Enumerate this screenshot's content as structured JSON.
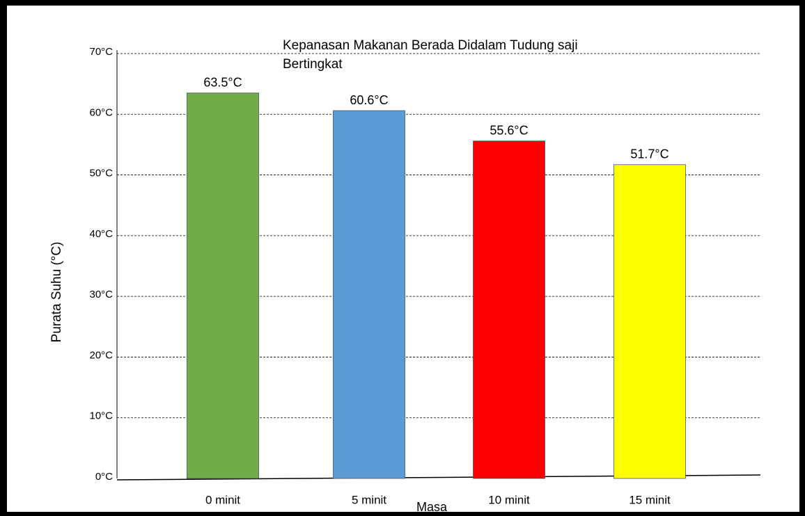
{
  "chart_data": {
    "type": "bar",
    "title": "Kepanasan Makanan Berada Didalam Tudung saji Bertingkat",
    "y_label": "Purata Suhu (°C)",
    "x_label": "Masa",
    "categories": [
      "0 minit",
      "5 minit",
      "10 minit",
      "15 minit"
    ],
    "values": [
      63.5,
      60.6,
      55.6,
      51.7
    ],
    "value_labels": [
      "63.5°C",
      "60.6°C",
      "55.6°C",
      "51.7°C"
    ],
    "colors": [
      "#70ad47",
      "#5b9bd5",
      "#ff0000",
      "#ffff00"
    ],
    "ylim": [
      0,
      70
    ],
    "yticks": [
      {
        "value": 0,
        "label": "0°C"
      },
      {
        "value": 10,
        "label": "10°C"
      },
      {
        "value": 20,
        "label": "20°C"
      },
      {
        "value": 30,
        "label": "30°C"
      },
      {
        "value": 40,
        "label": "40°C"
      },
      {
        "value": 50,
        "label": "50°C"
      },
      {
        "value": 60,
        "label": "60°C"
      },
      {
        "value": 70,
        "label": "70°C"
      }
    ],
    "grid": true
  }
}
